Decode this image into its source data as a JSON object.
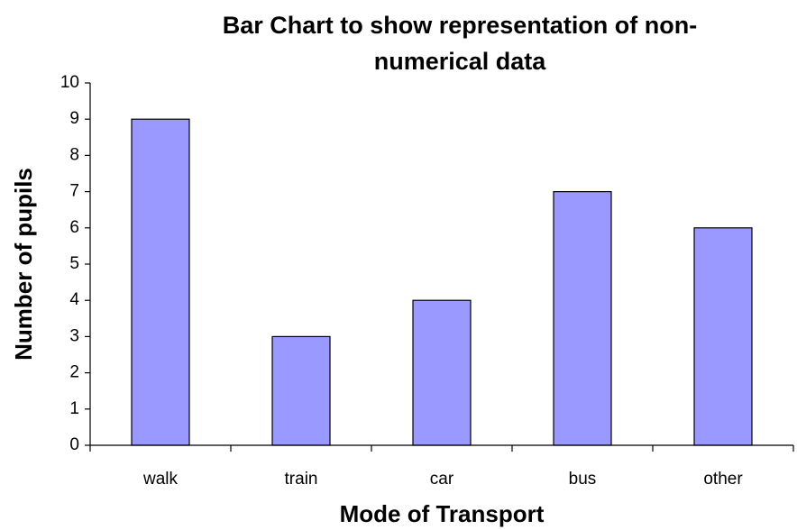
{
  "chart_data": {
    "type": "bar",
    "title": "Bar Chart to show representation of non-numerical data",
    "x_label": "Mode of Transport",
    "y_label": "Number of pupils",
    "categories": [
      "walk",
      "train",
      "car",
      "bus",
      "other"
    ],
    "values": [
      9,
      3,
      4,
      7,
      6
    ],
    "color": "#9999ff",
    "ylim": [
      0,
      10
    ],
    "yticks": [
      0,
      1,
      2,
      3,
      4,
      5,
      6,
      7,
      8,
      9,
      10
    ],
    "grid": false
  }
}
